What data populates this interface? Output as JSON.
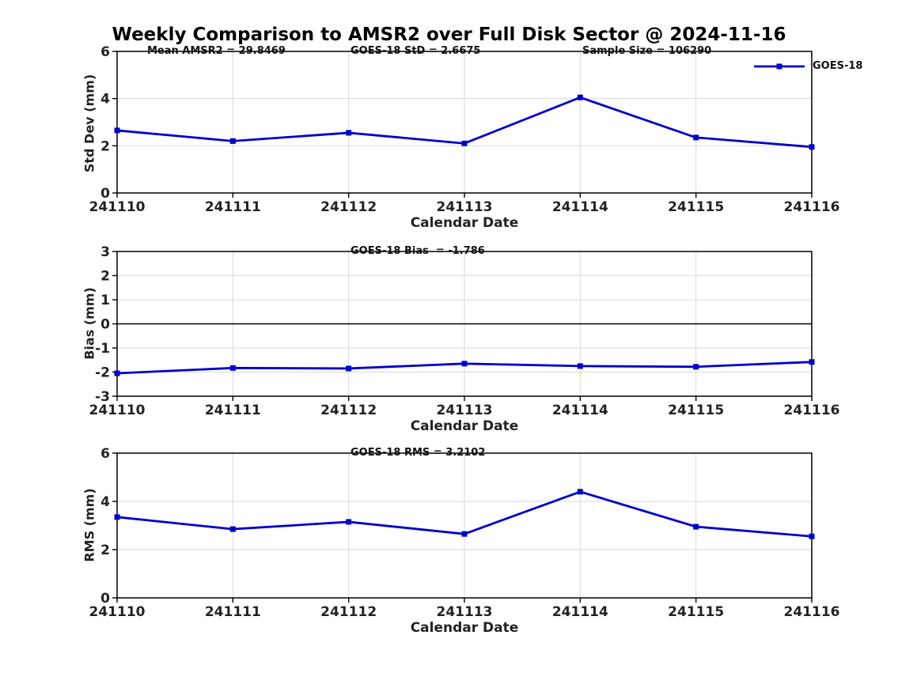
{
  "title": "Weekly Comparison to AMSR2 over Full Disk Sector @ 2024-11-16",
  "accent_color": "#0000cc",
  "grid_color": "#d9d9d9",
  "axis_color": "#000000",
  "chart_data": [
    {
      "type": "line",
      "categories": [
        "241110",
        "241111",
        "241112",
        "241113",
        "241114",
        "241115",
        "241116"
      ],
      "series": [
        {
          "name": "GOES-18",
          "values": [
            2.65,
            2.2,
            2.55,
            2.1,
            4.05,
            2.35,
            1.95
          ]
        }
      ],
      "marker": "square",
      "ylabel": "Std Dev (mm)",
      "xlabel": "Calendar Date",
      "ylim": [
        0,
        6
      ],
      "yticks": [
        0,
        2,
        4,
        6
      ],
      "grid": true,
      "zero_line": false,
      "legend": "GOES-18",
      "legend_position": "top-right",
      "annotations": [
        {
          "text": "Mean AMSR2 = 29.8469"
        },
        {
          "text": "GOES-18 StD = 2.6675"
        },
        {
          "text": "Sample Size = 106290"
        }
      ]
    },
    {
      "type": "line",
      "categories": [
        "241110",
        "241111",
        "241112",
        "241113",
        "241114",
        "241115",
        "241116"
      ],
      "series": [
        {
          "name": "GOES-18",
          "values": [
            -2.05,
            -1.83,
            -1.85,
            -1.65,
            -1.75,
            -1.78,
            -1.58
          ]
        }
      ],
      "marker": "square",
      "ylabel": "Bias (mm)",
      "xlabel": "Calendar Date",
      "ylim": [
        -3,
        3
      ],
      "yticks": [
        -3,
        -2,
        -1,
        0,
        1,
        2,
        3
      ],
      "grid": true,
      "zero_line": true,
      "annotations": [
        {
          "text": "GOES-18 Bias  = -1.786"
        }
      ]
    },
    {
      "type": "line",
      "categories": [
        "241110",
        "241111",
        "241112",
        "241113",
        "241114",
        "241115",
        "241116"
      ],
      "series": [
        {
          "name": "GOES-18",
          "values": [
            3.35,
            2.85,
            3.15,
            2.65,
            4.4,
            2.95,
            2.55
          ]
        }
      ],
      "marker": "square",
      "ylabel": "RMS (mm)",
      "xlabel": "Calendar Date",
      "ylim": [
        0,
        6
      ],
      "yticks": [
        0,
        2,
        4,
        6
      ],
      "grid": true,
      "zero_line": false,
      "annotations": [
        {
          "text": "GOES-18 RMS = 3.2102"
        }
      ]
    }
  ]
}
